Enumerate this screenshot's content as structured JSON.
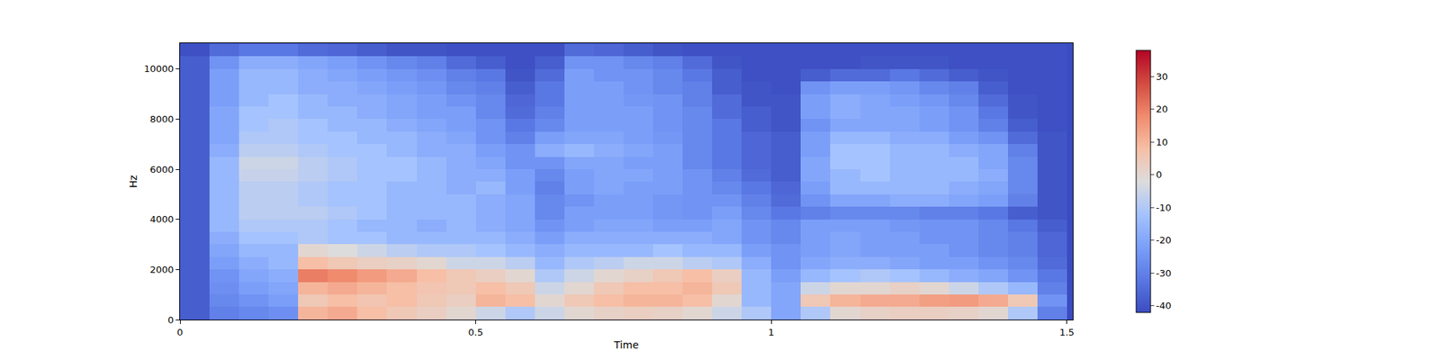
{
  "chart_data": {
    "type": "heatmap",
    "xlabel": "Time",
    "ylabel": "Hz",
    "xlim": [
      0,
      1.51
    ],
    "ylim": [
      0,
      11025
    ],
    "xticks": [
      0,
      0.5,
      1,
      1.5
    ],
    "yticks": [
      0,
      2000,
      4000,
      6000,
      8000,
      10000
    ],
    "x": [
      0.025,
      0.075,
      0.125,
      0.175,
      0.225,
      0.275,
      0.325,
      0.375,
      0.425,
      0.475,
      0.525,
      0.575,
      0.625,
      0.675,
      0.725,
      0.775,
      0.825,
      0.875,
      0.925,
      0.975,
      1.025,
      1.075,
      1.125,
      1.175,
      1.225,
      1.275,
      1.325,
      1.375,
      1.425,
      1.475
    ],
    "y": [
      250,
      750,
      1250,
      1750,
      2250,
      2750,
      3250,
      3750,
      4250,
      4750,
      5250,
      5750,
      6250,
      6750,
      7250,
      7750,
      8250,
      8750,
      9250,
      9750,
      10250,
      10750
    ],
    "cells": [
      [
        -38,
        -30,
        -28,
        -26,
        10,
        12,
        8,
        5,
        3,
        0,
        -5,
        -10,
        -5,
        0,
        2,
        3,
        2,
        0,
        -5,
        -10,
        -20,
        -10,
        0,
        2,
        3,
        3,
        2,
        0,
        -10,
        -30
      ],
      [
        -38,
        -28,
        -25,
        -22,
        5,
        8,
        6,
        8,
        5,
        3,
        10,
        8,
        0,
        5,
        8,
        10,
        10,
        8,
        0,
        -15,
        -20,
        5,
        10,
        12,
        12,
        14,
        15,
        12,
        5,
        -25
      ],
      [
        -38,
        -26,
        -22,
        -20,
        10,
        12,
        10,
        8,
        6,
        5,
        8,
        5,
        -5,
        0,
        5,
        8,
        8,
        10,
        5,
        -15,
        -20,
        -5,
        0,
        0,
        2,
        0,
        -5,
        -10,
        -15,
        -30
      ],
      [
        -38,
        -25,
        -20,
        -18,
        20,
        18,
        15,
        12,
        8,
        5,
        3,
        0,
        -10,
        -5,
        0,
        2,
        5,
        8,
        3,
        -15,
        -22,
        -15,
        -12,
        -10,
        -12,
        -15,
        -18,
        -20,
        -25,
        -32
      ],
      [
        -38,
        -22,
        -18,
        -15,
        8,
        5,
        3,
        2,
        0,
        -5,
        -5,
        -8,
        -15,
        -10,
        -8,
        -5,
        -5,
        -8,
        -10,
        -18,
        -25,
        -20,
        -18,
        -18,
        -20,
        -22,
        -22,
        -25,
        -28,
        -35
      ],
      [
        -38,
        -20,
        -15,
        -15,
        0,
        -2,
        -5,
        -8,
        -10,
        -10,
        -12,
        -15,
        -18,
        -15,
        -15,
        -15,
        -12,
        -15,
        -15,
        -22,
        -25,
        -22,
        -20,
        -22,
        -22,
        -22,
        -25,
        -28,
        -30,
        -36
      ],
      [
        -38,
        -18,
        -12,
        -12,
        -10,
        -12,
        -12,
        -15,
        -15,
        -15,
        -15,
        -18,
        -22,
        -18,
        -18,
        -18,
        -18,
        -18,
        -20,
        -25,
        -28,
        -22,
        -20,
        -22,
        -22,
        -25,
        -25,
        -28,
        -30,
        -36
      ],
      [
        -38,
        -15,
        -10,
        -10,
        -10,
        -12,
        -15,
        -15,
        -18,
        -15,
        -18,
        -20,
        -25,
        -22,
        -20,
        -20,
        -22,
        -22,
        -20,
        -25,
        -28,
        -22,
        -22,
        -22,
        -24,
        -25,
        -25,
        -28,
        -32,
        -38
      ],
      [
        -38,
        -15,
        -8,
        -8,
        -8,
        -10,
        -12,
        -15,
        -15,
        -15,
        -18,
        -20,
        -28,
        -22,
        -22,
        -22,
        -24,
        -25,
        -22,
        -28,
        -32,
        -30,
        -28,
        -28,
        -28,
        -30,
        -30,
        -32,
        -38,
        -40
      ],
      [
        -38,
        -15,
        -8,
        -8,
        -10,
        -12,
        -12,
        -15,
        -15,
        -15,
        -18,
        -20,
        -28,
        -25,
        -22,
        -22,
        -24,
        -25,
        -25,
        -30,
        -35,
        -25,
        -20,
        -20,
        -18,
        -18,
        -20,
        -22,
        -30,
        -40
      ],
      [
        -38,
        -15,
        -8,
        -8,
        -10,
        -12,
        -12,
        -15,
        -15,
        -18,
        -15,
        -22,
        -30,
        -22,
        -20,
        -22,
        -22,
        -25,
        -28,
        -32,
        -36,
        -22,
        -15,
        -15,
        -15,
        -15,
        -18,
        -20,
        -28,
        -40
      ],
      [
        -38,
        -15,
        -6,
        -6,
        -8,
        -10,
        -12,
        -12,
        -15,
        -18,
        -18,
        -22,
        -28,
        -22,
        -20,
        -20,
        -22,
        -25,
        -30,
        -35,
        -38,
        -20,
        -15,
        -12,
        -15,
        -15,
        -15,
        -18,
        -28,
        -40
      ],
      [
        -38,
        -15,
        -5,
        -5,
        -8,
        -10,
        -12,
        -12,
        -15,
        -18,
        -20,
        -25,
        -25,
        -20,
        -20,
        -22,
        -22,
        -28,
        -32,
        -36,
        -38,
        -20,
        -12,
        -12,
        -15,
        -15,
        -15,
        -20,
        -28,
        -40
      ],
      [
        -38,
        -18,
        -8,
        -8,
        -10,
        -12,
        -12,
        -15,
        -18,
        -18,
        -22,
        -25,
        -18,
        -15,
        -18,
        -20,
        -22,
        -28,
        -32,
        -36,
        -38,
        -22,
        -12,
        -12,
        -15,
        -15,
        -18,
        -20,
        -30,
        -40
      ],
      [
        -38,
        -20,
        -10,
        -10,
        -12,
        -12,
        -15,
        -15,
        -18,
        -20,
        -25,
        -30,
        -22,
        -20,
        -20,
        -22,
        -24,
        -28,
        -32,
        -36,
        -38,
        -22,
        -15,
        -15,
        -18,
        -18,
        -22,
        -25,
        -35,
        -40
      ],
      [
        -38,
        -20,
        -12,
        -10,
        -12,
        -15,
        -15,
        -18,
        -20,
        -22,
        -25,
        -32,
        -28,
        -22,
        -22,
        -22,
        -25,
        -28,
        -32,
        -38,
        -40,
        -25,
        -20,
        -20,
        -20,
        -22,
        -25,
        -30,
        -38,
        -41
      ],
      [
        -38,
        -20,
        -12,
        -12,
        -15,
        -15,
        -18,
        -20,
        -22,
        -22,
        -28,
        -35,
        -30,
        -22,
        -22,
        -22,
        -25,
        -28,
        -35,
        -38,
        -40,
        -22,
        -18,
        -20,
        -20,
        -22,
        -25,
        -32,
        -40,
        -41
      ],
      [
        -38,
        -22,
        -15,
        -12,
        -15,
        -18,
        -18,
        -20,
        -22,
        -25,
        -28,
        -36,
        -32,
        -22,
        -22,
        -24,
        -25,
        -30,
        -35,
        -40,
        -40,
        -22,
        -18,
        -20,
        -22,
        -24,
        -28,
        -35,
        -40,
        -41
      ],
      [
        -38,
        -22,
        -15,
        -15,
        -18,
        -18,
        -20,
        -22,
        -24,
        -28,
        -30,
        -38,
        -32,
        -22,
        -22,
        -25,
        -28,
        -30,
        -38,
        -40,
        -41,
        -25,
        -22,
        -22,
        -24,
        -28,
        -30,
        -38,
        -41,
        -41
      ],
      [
        -38,
        -22,
        -15,
        -15,
        -18,
        -20,
        -22,
        -24,
        -26,
        -30,
        -32,
        -40,
        -35,
        -22,
        -25,
        -25,
        -28,
        -32,
        -38,
        -41,
        -41,
        -38,
        -35,
        -35,
        -32,
        -35,
        -38,
        -40,
        -41,
        -41
      ],
      [
        -38,
        -25,
        -18,
        -18,
        -20,
        -22,
        -25,
        -28,
        -30,
        -35,
        -38,
        -41,
        -38,
        -25,
        -25,
        -28,
        -30,
        -35,
        -40,
        -41,
        -41,
        -41,
        -41,
        -40,
        -40,
        -40,
        -41,
        -41,
        -41,
        -41
      ],
      [
        -41,
        -35,
        -32,
        -32,
        -35,
        -36,
        -38,
        -40,
        -40,
        -41,
        -41,
        -41,
        -41,
        -35,
        -36,
        -38,
        -40,
        -41,
        -41,
        -41,
        -41,
        -41,
        -41,
        -41,
        -41,
        -41,
        -41,
        -41,
        -41,
        -41
      ]
    ],
    "colorbar": {
      "range": [
        -42,
        38
      ],
      "ticks": [
        -40,
        -30,
        -20,
        -10,
        0,
        10,
        20,
        30
      ]
    }
  }
}
